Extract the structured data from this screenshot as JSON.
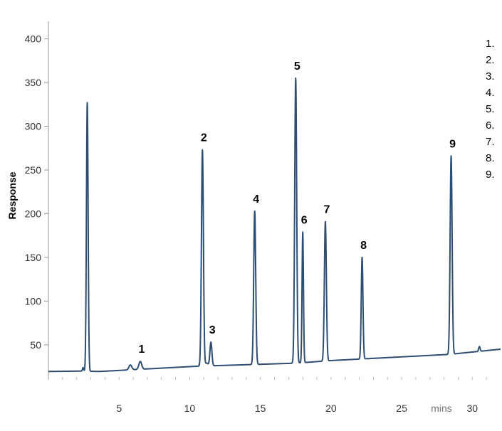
{
  "chart_data": {
    "type": "line",
    "ylabel": "Response",
    "x_unit_label": "mins",
    "xlim": [
      0,
      32
    ],
    "ylim": [
      10,
      420
    ],
    "x_ticks": [
      "5",
      "10",
      "15",
      "20",
      "25",
      "30"
    ],
    "x_tick_values": [
      5,
      10,
      15,
      20,
      25,
      30
    ],
    "y_ticks": [
      "50",
      "100",
      "150",
      "200",
      "250",
      "300",
      "350",
      "400"
    ],
    "y_tick_values": [
      50,
      100,
      150,
      200,
      250,
      300,
      350,
      400
    ],
    "grid": false,
    "line_color": "#2d4e72",
    "baseline": [
      [
        0,
        19.5
      ],
      [
        2.4,
        20
      ],
      [
        3.6,
        19.5
      ],
      [
        10.5,
        25.5
      ],
      [
        17.5,
        29
      ],
      [
        20,
        32
      ],
      [
        28.3,
        39
      ],
      [
        32,
        45
      ]
    ],
    "solvent_peak": {
      "x": 2.75,
      "y": 327,
      "width": 0.06
    },
    "minor_peaks": [
      {
        "x": 2.45,
        "y": 24,
        "width": 0.04
      },
      {
        "x": 5.8,
        "y": 27,
        "width": 0.1
      },
      {
        "x": 11.2,
        "y": 29,
        "width": 0.1
      },
      {
        "x": 30.5,
        "y": 48,
        "width": 0.05
      }
    ],
    "peaks": [
      {
        "label": "1",
        "x": 6.5,
        "y": 31,
        "width": 0.1
      },
      {
        "label": "2",
        "x": 10.9,
        "y": 273,
        "width": 0.07
      },
      {
        "label": "3",
        "x": 11.5,
        "y": 53,
        "width": 0.07
      },
      {
        "label": "4",
        "x": 14.6,
        "y": 203,
        "width": 0.07
      },
      {
        "label": "5",
        "x": 17.5,
        "y": 355,
        "width": 0.07
      },
      {
        "label": "6",
        "x": 18.0,
        "y": 179,
        "width": 0.05
      },
      {
        "label": "7",
        "x": 19.6,
        "y": 191,
        "width": 0.07
      },
      {
        "label": "8",
        "x": 22.2,
        "y": 150,
        "width": 0.06
      },
      {
        "label": "9",
        "x": 28.5,
        "y": 266,
        "width": 0.07
      }
    ],
    "legend": [
      "1.",
      "2.",
      "3.",
      "4.",
      "5.",
      "6.",
      "7.",
      "8.",
      "9."
    ]
  }
}
